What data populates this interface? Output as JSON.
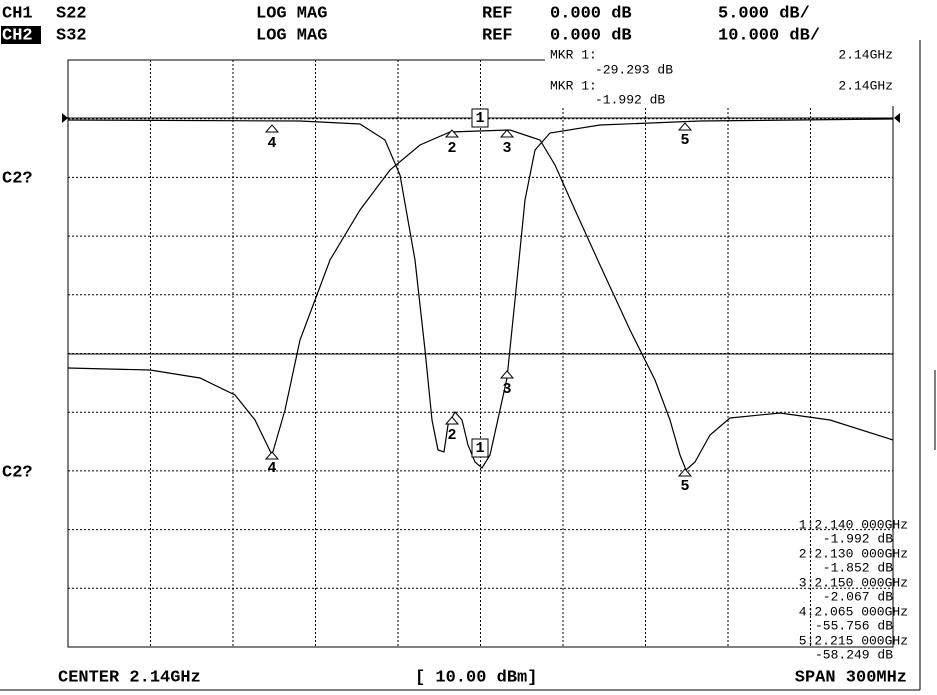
{
  "header": {
    "ch1": {
      "channel": "CH1",
      "param": "S22",
      "format": "LOG MAG",
      "ref_label": "REF",
      "ref": "0.000 dB",
      "scale": "5.000 dB/"
    },
    "ch2": {
      "channel": "CH2",
      "param": "S32",
      "format": "LOG MAG",
      "ref_label": "REF",
      "ref": "0.000 dB",
      "scale": "10.000 dB/"
    }
  },
  "marker_readout": [
    {
      "label": "MKR 1:",
      "freq": "2.14GHz",
      "value": "-29.293 dB"
    },
    {
      "label": "MKR 1:",
      "freq": "2.14GHz",
      "value": "-1.992 dB"
    }
  ],
  "channel_labels": [
    "C2?",
    "C2?"
  ],
  "trace_markers": [
    "4",
    "2",
    "1",
    "3",
    "5"
  ],
  "marker_list": [
    {
      "freq": "1:2.140 000GHz",
      "value": "-1.992 dB"
    },
    {
      "freq": "2:2.130 000GHz",
      "value": "-1.852 dB"
    },
    {
      "freq": "3:2.150 000GHz",
      "value": "-2.067 dB"
    },
    {
      "freq": "4:2.065 000GHz",
      "value": "-55.756 dB"
    },
    {
      "freq": "5:2.215 000GHz",
      "value": "-58.249 dB"
    }
  ],
  "footer": {
    "center": "CENTER 2.14GHz",
    "power": "[ 10.00 dBm]",
    "span": "SPAN 300MHz"
  }
}
